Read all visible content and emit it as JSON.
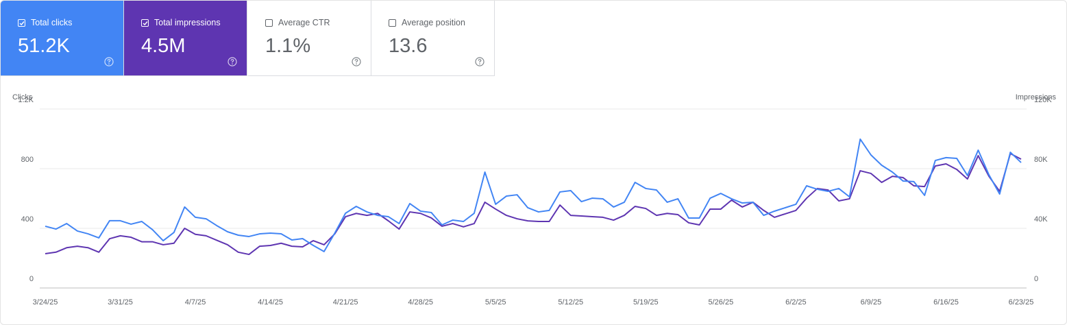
{
  "cards": [
    {
      "label": "Total clicks",
      "value": "51.2K",
      "checked": true,
      "color": "#4285f4"
    },
    {
      "label": "Total impressions",
      "value": "4.5M",
      "checked": true,
      "color": "#5e35b1"
    },
    {
      "label": "Average CTR",
      "value": "1.1%",
      "checked": false,
      "color": "#ffffff"
    },
    {
      "label": "Average position",
      "value": "13.6",
      "checked": false,
      "color": "#ffffff"
    }
  ],
  "chart_data": {
    "type": "line",
    "y_label": "Clicks",
    "y2_label": "Impressions",
    "categories": [
      "3/24/25",
      null,
      null,
      null,
      null,
      null,
      null,
      "3/31/25",
      null,
      null,
      null,
      null,
      null,
      null,
      "4/7/25",
      null,
      null,
      null,
      null,
      null,
      null,
      "4/14/25",
      null,
      null,
      null,
      null,
      null,
      null,
      "4/21/25",
      null,
      null,
      null,
      null,
      null,
      null,
      "4/28/25",
      null,
      null,
      null,
      null,
      null,
      null,
      "5/5/25",
      null,
      null,
      null,
      null,
      null,
      null,
      "5/12/25",
      null,
      null,
      null,
      null,
      null,
      null,
      "5/19/25",
      null,
      null,
      null,
      null,
      null,
      null,
      "5/26/25",
      null,
      null,
      null,
      null,
      null,
      null,
      "6/2/25",
      null,
      null,
      null,
      null,
      null,
      null,
      "6/9/25",
      null,
      null,
      null,
      null,
      null,
      null,
      "6/16/25",
      null,
      null,
      null,
      null,
      null,
      null,
      "6/23/25"
    ],
    "ylim": [
      0,
      1200
    ],
    "yticks": [
      0,
      400,
      800,
      {
        "value": 1200,
        "label": "1.2K"
      }
    ],
    "y2lim": [
      0,
      120000
    ],
    "y2ticks": [
      0,
      {
        "value": 40000,
        "label": "40K"
      },
      {
        "value": 80000,
        "label": "80K"
      },
      {
        "value": 120000,
        "label": "120K"
      }
    ],
    "grid": true,
    "series": [
      {
        "name": "Impressions",
        "color": "#5e35b1",
        "axis": "y2",
        "values": [
          23000,
          24000,
          27000,
          28000,
          27000,
          24000,
          33000,
          35000,
          34000,
          31000,
          31000,
          29000,
          30000,
          40000,
          36000,
          35000,
          32000,
          29000,
          24000,
          22500,
          28000,
          28500,
          30000,
          28000,
          27600,
          31700,
          29000,
          36300,
          47800,
          50000,
          48700,
          50000,
          45000,
          39500,
          51000,
          50000,
          47000,
          41400,
          43200,
          41000,
          43200,
          57500,
          52900,
          48700,
          46400,
          45000,
          44600,
          44600,
          55600,
          48700,
          48300,
          47800,
          47400,
          45500,
          48700,
          54700,
          53300,
          48700,
          50000,
          49200,
          43700,
          42300,
          52900,
          52900,
          58900,
          54300,
          57500,
          52000,
          47400,
          49700,
          52000,
          60200,
          66700,
          65700,
          58400,
          59800,
          78600,
          76800,
          70800,
          74900,
          74000,
          68500,
          68000,
          81800,
          83200,
          79500,
          73100,
          88700,
          74900,
          64800,
          90100,
          86400
        ]
      },
      {
        "name": "Clicks",
        "color": "#4285f4",
        "values": [
          414,
          395,
          432,
          382,
          363,
          336,
          451,
          451,
          428,
          446,
          391,
          317,
          372,
          543,
          474,
          464,
          418,
          377,
          354,
          345,
          363,
          368,
          363,
          322,
          331,
          285,
          244,
          368,
          501,
          547,
          510,
          487,
          478,
          432,
          566,
          515,
          506,
          423,
          455,
          446,
          501,
          777,
          561,
          616,
          625,
          538,
          510,
          520,
          644,
          653,
          579,
          602,
          598,
          543,
          575,
          708,
          667,
          657,
          575,
          598,
          469,
          469,
          602,
          634,
          598,
          570,
          575,
          487,
          515,
          538,
          561,
          685,
          662,
          648,
          667,
          611,
          998,
          892,
          823,
          777,
          717,
          713,
          621,
          855,
          874,
          869,
          754,
          924,
          759,
          630,
          910,
          841
        ]
      }
    ]
  }
}
